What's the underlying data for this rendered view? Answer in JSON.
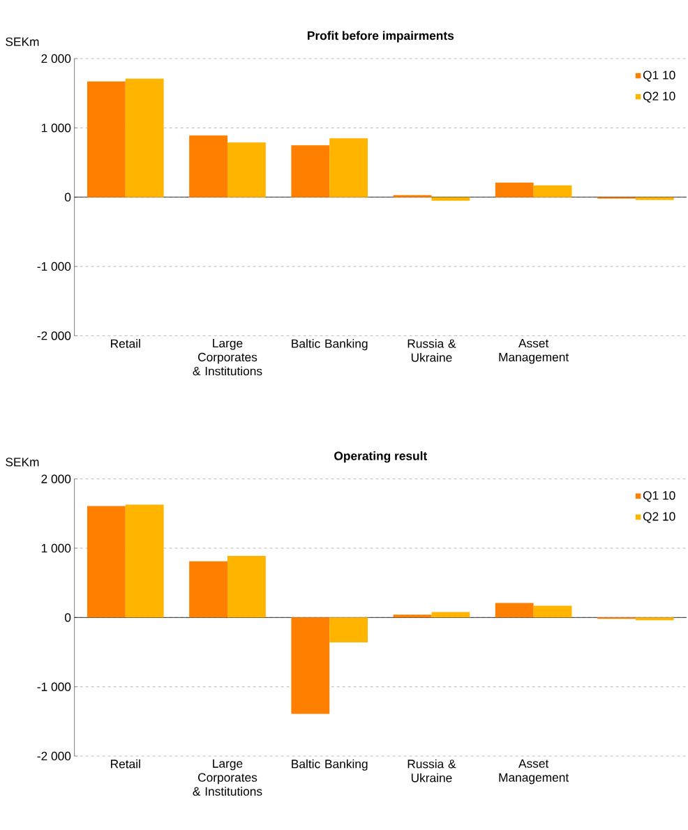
{
  "chart_data": [
    {
      "type": "bar",
      "title": "Profit before impairments",
      "ylabel": "SEKm",
      "categories": [
        "Retail",
        "Large Corporates & Institutions",
        "Baltic Banking",
        "Russia & Ukraine",
        "Asset Management",
        null
      ],
      "series": [
        {
          "name": "Q1 10",
          "color": "#ff8000",
          "values": [
            1670,
            890,
            750,
            30,
            210,
            -20
          ]
        },
        {
          "name": "Q2 10",
          "color": "#ffb400",
          "values": [
            1710,
            790,
            850,
            -50,
            170,
            -40
          ]
        }
      ],
      "ylim": [
        -2000,
        2000
      ],
      "yticks": [
        {
          "value": -2000,
          "label": "-2 000"
        },
        {
          "value": -1000,
          "label": "-1 000"
        },
        0,
        {
          "value": 1000,
          "label": "1 000"
        },
        {
          "value": 2000,
          "label": "2 000"
        }
      ],
      "grid": "y",
      "legend": "top right"
    },
    {
      "type": "bar",
      "title": "Operating result",
      "ylabel": "SEKm",
      "categories": [
        "Retail",
        "Large Corporates & Institutions",
        "Baltic Banking",
        "Russia & Ukraine",
        "Asset Management",
        null
      ],
      "series": [
        {
          "name": "Q1 10",
          "color": "#ff8000",
          "values": [
            1610,
            810,
            -1390,
            40,
            210,
            -20
          ]
        },
        {
          "name": "Q2 10",
          "color": "#ffb400",
          "values": [
            1630,
            890,
            -360,
            80,
            170,
            -40
          ]
        }
      ],
      "ylim": [
        -2000,
        2000
      ],
      "yticks": [
        {
          "value": -2000,
          "label": "-2 000"
        },
        {
          "value": -1000,
          "label": "-1 000"
        },
        0,
        {
          "value": 1000,
          "label": "1 000"
        },
        {
          "value": 2000,
          "label": "2 000"
        }
      ],
      "grid": "y",
      "legend": "top right"
    }
  ]
}
